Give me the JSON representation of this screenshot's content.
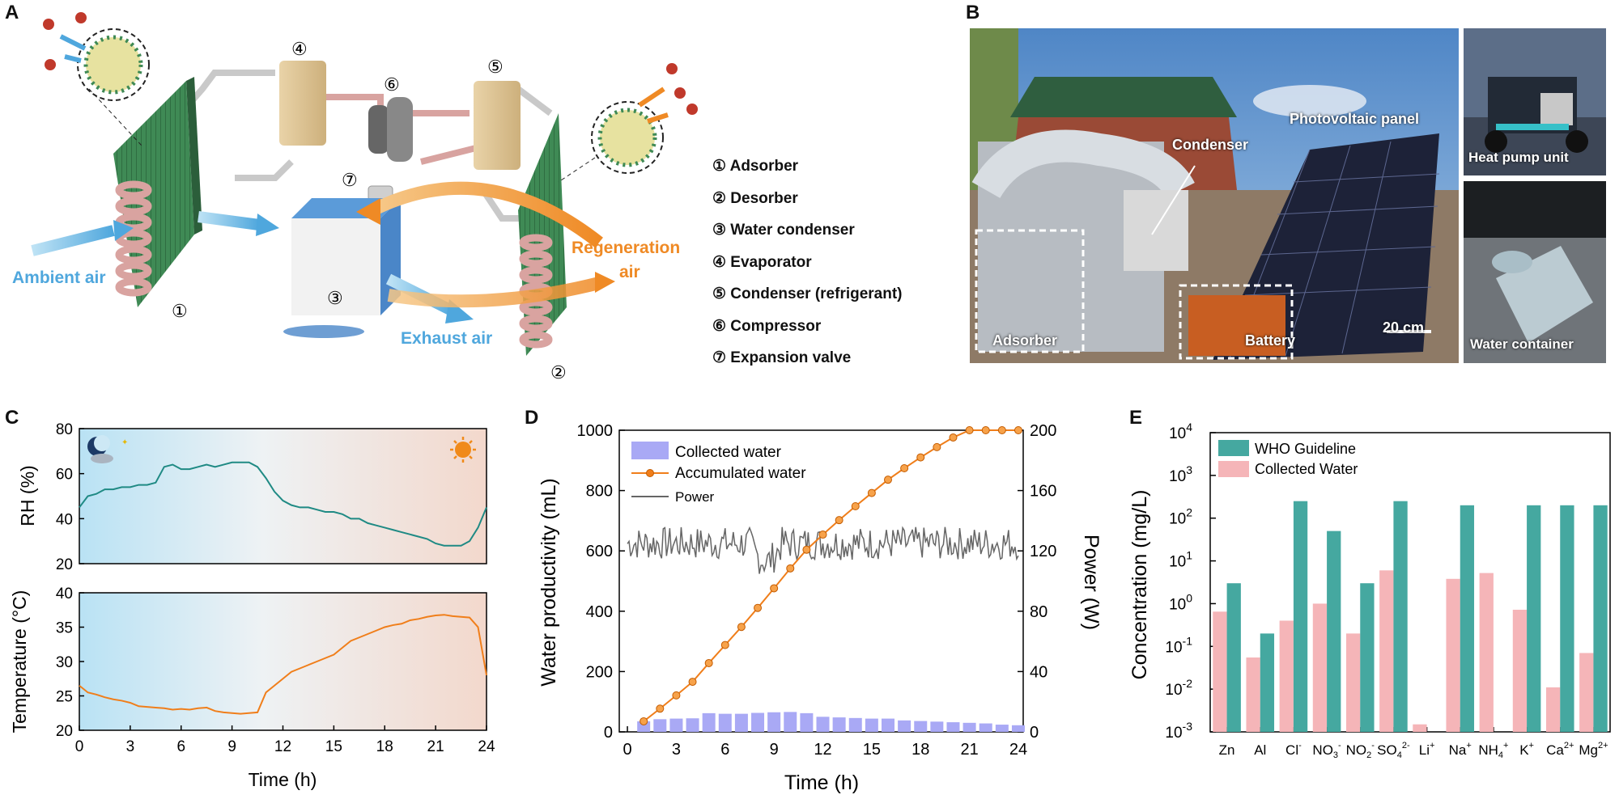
{
  "panels": {
    "a": "A",
    "b": "B",
    "c": "C",
    "d": "D",
    "e": "E"
  },
  "schematic": {
    "ambient_air": "Ambient air",
    "exhaust_air": "Exhaust air",
    "regeneration_air": "Regeneration\nair",
    "regen_line1": "Regeneration",
    "regen_line2": "air",
    "markers": [
      "①",
      "②",
      "③",
      "④",
      "⑤",
      "⑥",
      "⑦"
    ],
    "legend": [
      "① Adsorber",
      "② Desorber",
      "③ Water condenser",
      "④ Evaporator",
      "⑤ Condenser (refrigerant)",
      "⑥ Compressor",
      "⑦ Expansion valve"
    ],
    "colors": {
      "ambient": "#5aaee0",
      "regen": "#f0922e",
      "fin": "#3f8a55",
      "coil": "#d9a3a0"
    }
  },
  "photos": {
    "main_labels": {
      "photovoltaic": "Photovoltaic panel",
      "condenser": "Condenser",
      "adsorber": "Adsorber",
      "battery": "Battery",
      "scale": "20 cm"
    },
    "heat_pump": "Heat pump unit",
    "water_container": "Water container"
  },
  "chart_data": [
    {
      "type": "line",
      "panel": "C-top",
      "ylabel": "RH (%)",
      "ylim": [
        20,
        80
      ],
      "yticks": [
        "20",
        "40",
        "60",
        "80"
      ],
      "color": "#1f8a84",
      "x": [
        0,
        0.5,
        1,
        1.5,
        2,
        2.5,
        3,
        3.5,
        4,
        4.5,
        5,
        5.5,
        6,
        6.5,
        7,
        7.5,
        8,
        8.5,
        9,
        9.5,
        10,
        10.5,
        11,
        11.5,
        12,
        12.5,
        13,
        13.5,
        14,
        14.5,
        15,
        15.5,
        16,
        16.5,
        17,
        17.5,
        18,
        18.5,
        19,
        19.5,
        20,
        20.5,
        21,
        21.5,
        22,
        22.5,
        23,
        23.5,
        24
      ],
      "values": [
        45,
        50,
        51,
        53,
        53,
        54,
        54,
        55,
        55,
        56,
        63,
        64,
        62,
        62,
        63,
        64,
        63,
        64,
        65,
        65,
        65,
        63,
        58,
        52,
        48,
        46,
        45,
        45,
        44,
        43,
        43,
        42,
        40,
        40,
        38,
        37,
        36,
        35,
        34,
        33,
        32,
        31,
        29,
        28,
        28,
        28,
        30,
        36,
        45
      ],
      "icons": [
        "moon-icon",
        "sun-icon"
      ]
    },
    {
      "type": "line",
      "panel": "C-bottom",
      "ylabel": "Temperature (°C)",
      "xlabel": "Time (h)",
      "ylim": [
        20,
        40
      ],
      "yticks": [
        "20",
        "25",
        "30",
        "35",
        "40"
      ],
      "xticks": [
        "0",
        "3",
        "6",
        "9",
        "12",
        "15",
        "18",
        "21",
        "24"
      ],
      "color": "#f07e1a",
      "x": [
        0,
        0.5,
        1,
        1.5,
        2,
        2.5,
        3,
        3.5,
        4,
        4.5,
        5,
        5.5,
        6,
        6.5,
        7,
        7.5,
        8,
        8.5,
        9,
        9.5,
        10,
        10.5,
        11,
        11.5,
        12,
        12.5,
        13,
        13.5,
        14,
        14.5,
        15,
        15.5,
        16,
        16.5,
        17,
        17.5,
        18,
        18.5,
        19,
        19.5,
        20,
        20.5,
        21,
        21.5,
        22,
        22.5,
        23,
        23.5,
        24
      ],
      "values": [
        26.5,
        25.5,
        25.2,
        24.8,
        24.5,
        24.3,
        24.0,
        23.5,
        23.4,
        23.3,
        23.2,
        23.0,
        23.1,
        23.0,
        23.2,
        23.3,
        22.8,
        22.6,
        22.5,
        22.4,
        22.5,
        22.6,
        25.5,
        26.5,
        27.5,
        28.5,
        29,
        29.5,
        30,
        30.5,
        31,
        32,
        33,
        33.5,
        34,
        34.5,
        35,
        35.3,
        35.5,
        36,
        36.2,
        36.5,
        36.7,
        36.8,
        36.6,
        36.5,
        36.4,
        35.0,
        28
      ]
    },
    {
      "type": "bar+line",
      "panel": "D",
      "xlabel": "Time (h)",
      "ylabel": "Water productivity (mL)",
      "y2label": "Power (W)",
      "ylim": [
        0,
        1000
      ],
      "y2lim": [
        0,
        200
      ],
      "xticks": [
        "0",
        "3",
        "6",
        "9",
        "12",
        "15",
        "18",
        "21",
        "24"
      ],
      "yticks": [
        "0",
        "200",
        "400",
        "600",
        "800",
        "1000"
      ],
      "y2ticks": [
        "0",
        "40",
        "80",
        "120",
        "160",
        "200"
      ],
      "legend": [
        "Collected water",
        "Accumulated water",
        "Power"
      ],
      "colors": {
        "bar": "#a9a9f5",
        "line": "#f07e1a",
        "power": "#666666"
      },
      "x": [
        1,
        2,
        3,
        4,
        5,
        6,
        7,
        8,
        9,
        10,
        11,
        12,
        13,
        14,
        15,
        16,
        17,
        18,
        19,
        20,
        21,
        22,
        23,
        24
      ],
      "collected": [
        35,
        42,
        44,
        45,
        62,
        60,
        60,
        63,
        65,
        66,
        62,
        50,
        48,
        46,
        44,
        44,
        38,
        36,
        34,
        32,
        30,
        28,
        24,
        22
      ],
      "accumulated": [
        35,
        77,
        121,
        166,
        228,
        288,
        348,
        411,
        476,
        542,
        604,
        654,
        702,
        748,
        792,
        836,
        874,
        910,
        944,
        976,
        1006,
        1034,
        1058,
        1080
      ],
      "power_mean": 125
    },
    {
      "type": "bar",
      "panel": "E",
      "ylabel": "Concentration (mg/L)",
      "yscale": "log",
      "ylim": [
        0.001,
        10000
      ],
      "yticks": [
        "10-3",
        "10-2",
        "10-1",
        "100",
        "101",
        "102",
        "103",
        "104"
      ],
      "categories": [
        "Zn",
        "Al",
        "Cl-",
        "NO3-",
        "NO2-",
        "SO42-",
        "Li+",
        "Na+",
        "NH4+",
        "K+",
        "Ca2+",
        "Mg2+"
      ],
      "series": [
        {
          "name": "WHO Guideline",
          "color": "#45a8a0",
          "values": [
            3,
            0.2,
            250,
            50,
            3,
            250,
            null,
            200,
            null,
            200,
            200,
            200
          ]
        },
        {
          "name": "Collected Water",
          "color": "#f5b5b8",
          "values": [
            0.65,
            0.055,
            0.4,
            1.0,
            0.2,
            6,
            0.0015,
            3.8,
            5.2,
            0.72,
            0.011,
            0.07
          ]
        }
      ]
    }
  ]
}
